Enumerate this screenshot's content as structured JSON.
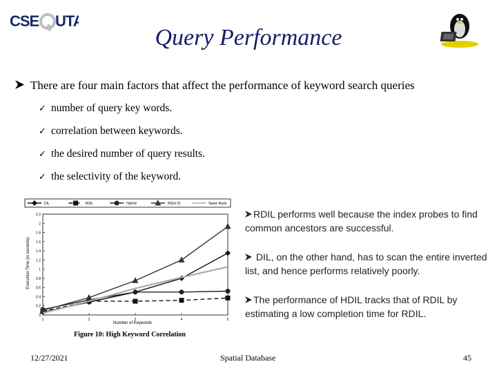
{
  "logo": {
    "text": "CSEQUTA"
  },
  "title": "Query Performance",
  "main_bullet": "There are four main factors that affect the performance of keyword search queries",
  "sub_bullets": [
    "number of query key words.",
    "correlation between keywords.",
    "the desired number of query results.",
    "the selectivity of the keyword."
  ],
  "right_points": [
    "RDIL performs well because the index probes to find common ancestors are successful.",
    " DIL, on the other hand, has to scan the entire inverted list, and hence performs relatively poorly.",
    "The performance of HDIL tracks that of RDIL by estimating a low completion time for RDIL."
  ],
  "footer": {
    "date": "12/27/2021",
    "center": "Spatial Database",
    "page": "45"
  },
  "chart_data": {
    "type": "line",
    "title": "Figure 10: High Keyword Correlation",
    "xlabel": "Number of Keywords",
    "ylabel": "Execution Time (in seconds)",
    "x": [
      1,
      2,
      3,
      4,
      5
    ],
    "xlim": [
      1,
      5
    ],
    "ylim": [
      0,
      2.2
    ],
    "yticks": [
      0,
      0.2,
      0.4,
      0.6,
      0.8,
      1,
      1.2,
      1.4,
      1.6,
      1.8,
      2,
      2.2
    ],
    "series": [
      {
        "name": "DIL",
        "values": [
          0.06,
          0.28,
          0.5,
          0.8,
          1.35
        ],
        "color": "#111111",
        "marker": "diamond",
        "dash": ""
      },
      {
        "name": "RDIL",
        "values": [
          0.08,
          0.3,
          0.3,
          0.32,
          0.37
        ],
        "color": "#111111",
        "marker": "square",
        "dash": "6,4"
      },
      {
        "name": "Hybrid",
        "values": [
          0.12,
          0.33,
          0.5,
          0.5,
          0.52
        ],
        "color": "#222222",
        "marker": "circle",
        "dash": ""
      },
      {
        "name": "HiDol IO",
        "values": [
          0.1,
          0.38,
          0.75,
          1.2,
          1.93
        ],
        "color": "#333333",
        "marker": "triangle",
        "dash": ""
      },
      {
        "name": "Naive Rank",
        "values": [
          0.04,
          0.3,
          0.58,
          0.82,
          1.05
        ],
        "color": "#aaaaaa",
        "marker": "none",
        "dash": ""
      }
    ],
    "legend_position": "top"
  }
}
